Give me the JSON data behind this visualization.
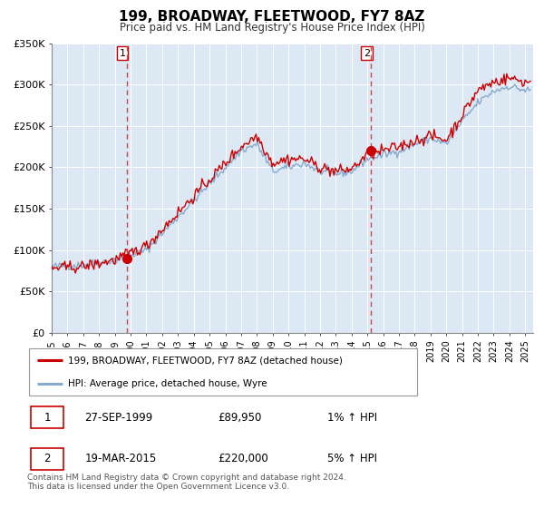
{
  "title": "199, BROADWAY, FLEETWOOD, FY7 8AZ",
  "subtitle": "Price paid vs. HM Land Registry's House Price Index (HPI)",
  "ylim": [
    0,
    350000
  ],
  "yticks": [
    0,
    50000,
    100000,
    150000,
    200000,
    250000,
    300000,
    350000
  ],
  "ytick_labels": [
    "£0",
    "£50K",
    "£100K",
    "£150K",
    "£200K",
    "£250K",
    "£300K",
    "£350K"
  ],
  "xlim_start": 1995.0,
  "xlim_end": 2025.5,
  "sale1_date": 1999.74,
  "sale1_price": 89950,
  "sale1_label": "1",
  "sale1_text": "27-SEP-1999",
  "sale1_amount": "£89,950",
  "sale1_hpi": "1% ↑ HPI",
  "sale2_date": 2015.21,
  "sale2_price": 220000,
  "sale2_label": "2",
  "sale2_text": "19-MAR-2015",
  "sale2_amount": "£220,000",
  "sale2_hpi": "5% ↑ HPI",
  "line_color_red": "#cc0000",
  "line_color_blue": "#88aacc",
  "marker_color": "#cc0000",
  "vline_color": "#cc4444",
  "bg_color": "#dce9f5",
  "legend_label_red": "199, BROADWAY, FLEETWOOD, FY7 8AZ (detached house)",
  "legend_label_blue": "HPI: Average price, detached house, Wyre",
  "footer1": "Contains HM Land Registry data © Crown copyright and database right 2024.",
  "footer2": "This data is licensed under the Open Government Licence v3.0."
}
